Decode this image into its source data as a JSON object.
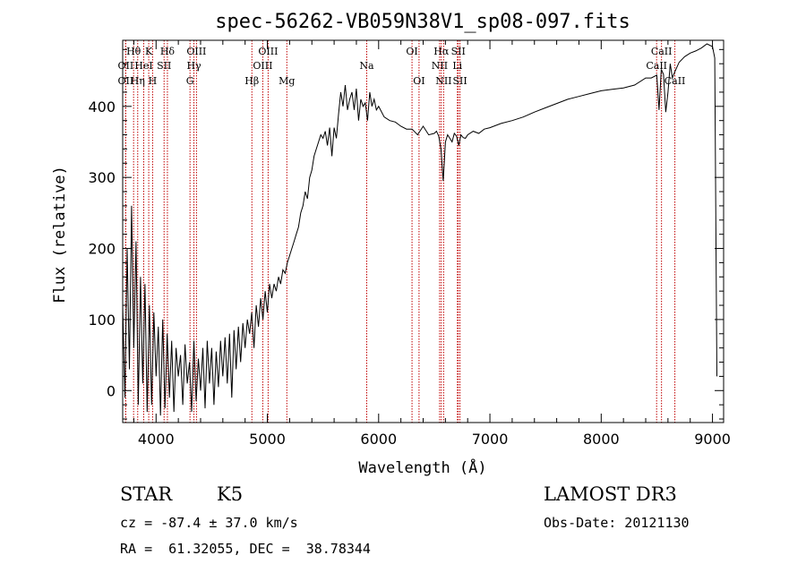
{
  "chart_data": {
    "type": "line",
    "title": "spec-56262-VB059N38V1_sp08-097.fits",
    "xlabel": "Wavelength (Å)",
    "ylabel": "Flux (relative)",
    "xlim": [
      3700,
      9100
    ],
    "ylim": [
      -45,
      493
    ],
    "xticks": [
      4000,
      5000,
      6000,
      7000,
      8000,
      9000
    ],
    "yticks": [
      0,
      100,
      200,
      300,
      400
    ],
    "grid": false,
    "series": [
      {
        "color": "#000000",
        "x": [
          3700,
          3720,
          3740,
          3760,
          3780,
          3800,
          3820,
          3840,
          3860,
          3880,
          3900,
          3920,
          3940,
          3960,
          3980,
          4000,
          4020,
          4040,
          4060,
          4080,
          4100,
          4120,
          4140,
          4160,
          4180,
          4200,
          4220,
          4240,
          4260,
          4280,
          4300,
          4320,
          4340,
          4360,
          4380,
          4400,
          4420,
          4440,
          4460,
          4480,
          4500,
          4520,
          4540,
          4560,
          4580,
          4600,
          4620,
          4640,
          4660,
          4680,
          4700,
          4720,
          4740,
          4760,
          4780,
          4800,
          4820,
          4840,
          4860,
          4880,
          4900,
          4920,
          4940,
          4960,
          4980,
          5000,
          5020,
          5040,
          5060,
          5080,
          5100,
          5120,
          5140,
          5160,
          5180,
          5200,
          5220,
          5240,
          5260,
          5280,
          5300,
          5320,
          5340,
          5360,
          5380,
          5400,
          5420,
          5440,
          5460,
          5480,
          5500,
          5520,
          5540,
          5560,
          5580,
          5600,
          5620,
          5640,
          5660,
          5680,
          5700,
          5720,
          5740,
          5760,
          5780,
          5800,
          5820,
          5840,
          5860,
          5880,
          5900,
          5920,
          5940,
          5960,
          5980,
          6000,
          6050,
          6100,
          6150,
          6200,
          6250,
          6300,
          6350,
          6400,
          6450,
          6500,
          6520,
          6540,
          6560,
          6580,
          6600,
          6620,
          6640,
          6660,
          6680,
          6700,
          6720,
          6740,
          6760,
          6780,
          6800,
          6850,
          6900,
          6950,
          7000,
          7100,
          7200,
          7300,
          7400,
          7500,
          7600,
          7700,
          7800,
          7900,
          8000,
          8100,
          8200,
          8300,
          8400,
          8450,
          8500,
          8520,
          8540,
          8560,
          8580,
          8600,
          8620,
          8640,
          8660,
          8680,
          8700,
          8750,
          8800,
          8850,
          8900,
          8950,
          9000,
          9020,
          9040
        ],
        "y": [
          120,
          -10,
          200,
          30,
          260,
          60,
          210,
          -20,
          160,
          10,
          150,
          -30,
          120,
          -20,
          110,
          20,
          90,
          -35,
          100,
          -25,
          80,
          -10,
          70,
          -30,
          60,
          20,
          50,
          -20,
          65,
          10,
          40,
          -30,
          70,
          -15,
          45,
          0,
          60,
          -25,
          70,
          10,
          60,
          -20,
          55,
          5,
          70,
          20,
          75,
          10,
          80,
          -10,
          85,
          30,
          90,
          40,
          95,
          60,
          100,
          80,
          110,
          60,
          120,
          90,
          130,
          100,
          140,
          110,
          150,
          130,
          150,
          140,
          160,
          150,
          170,
          165,
          180,
          190,
          200,
          210,
          220,
          230,
          250,
          260,
          280,
          270,
          300,
          310,
          330,
          340,
          350,
          360,
          355,
          365,
          345,
          370,
          330,
          370,
          355,
          390,
          420,
          400,
          430,
          395,
          410,
          420,
          395,
          425,
          380,
          410,
          400,
          405,
          380,
          420,
          400,
          410,
          395,
          400,
          385,
          380,
          378,
          372,
          368,
          368,
          360,
          372,
          360,
          362,
          365,
          358,
          340,
          295,
          350,
          360,
          355,
          350,
          362,
          358,
          345,
          360,
          356,
          355,
          360,
          365,
          362,
          368,
          370,
          376,
          380,
          385,
          392,
          398,
          404,
          410,
          414,
          418,
          422,
          424,
          426,
          430,
          440,
          440,
          444,
          395,
          452,
          445,
          392,
          420,
          460,
          440,
          448,
          455,
          462,
          470,
          475,
          478,
          482,
          488,
          484,
          468,
          20
        ]
      }
    ],
    "spectral_lines": [
      {
        "label": "Hθ",
        "x": 3798,
        "row": 0
      },
      {
        "label": "OII",
        "x": 3727,
        "row": 1
      },
      {
        "label": "OII",
        "x": 3727,
        "row": 2
      },
      {
        "label": "Hη",
        "x": 3835,
        "row": 2
      },
      {
        "label": "HeI",
        "x": 3889,
        "row": 1
      },
      {
        "label": "K",
        "x": 3934,
        "row": 0
      },
      {
        "label": "H",
        "x": 3969,
        "row": 2
      },
      {
        "label": "SII",
        "x": 4072,
        "row": 1
      },
      {
        "label": "Hδ",
        "x": 4102,
        "row": 0
      },
      {
        "label": "Hγ",
        "x": 4340,
        "row": 1
      },
      {
        "label": "G",
        "x": 4305,
        "row": 2
      },
      {
        "label": "OIII",
        "x": 4363,
        "row": 0
      },
      {
        "label": "Hβ",
        "x": 4861,
        "row": 2
      },
      {
        "label": "OIII",
        "x": 4959,
        "row": 1
      },
      {
        "label": "OIII",
        "x": 5007,
        "row": 0
      },
      {
        "label": "Mg",
        "x": 5175,
        "row": 2
      },
      {
        "label": "Na",
        "x": 5893,
        "row": 1
      },
      {
        "label": "OI",
        "x": 6300,
        "row": 0
      },
      {
        "label": "OI",
        "x": 6363,
        "row": 2
      },
      {
        "label": "NII",
        "x": 6548,
        "row": 1
      },
      {
        "label": "Hα",
        "x": 6563,
        "row": 0
      },
      {
        "label": "NII",
        "x": 6584,
        "row": 2
      },
      {
        "label": "SII",
        "x": 6716,
        "row": 0
      },
      {
        "label": "Li",
        "x": 6708,
        "row": 1
      },
      {
        "label": "SII",
        "x": 6731,
        "row": 2
      },
      {
        "label": "CaII",
        "x": 8498,
        "row": 1
      },
      {
        "label": "CaII",
        "x": 8542,
        "row": 0
      },
      {
        "label": "CaII",
        "x": 8662,
        "row": 2
      }
    ]
  },
  "info": {
    "class_label": "STAR",
    "subclass_label": "K5",
    "survey_label": "LAMOST DR3",
    "cz_text": "cz = -87.4 ± 37.0 km/s",
    "obs_date_text": "Obs-Date: 20121130",
    "coords_text": "RA =  61.32055, DEC =  38.78344"
  }
}
